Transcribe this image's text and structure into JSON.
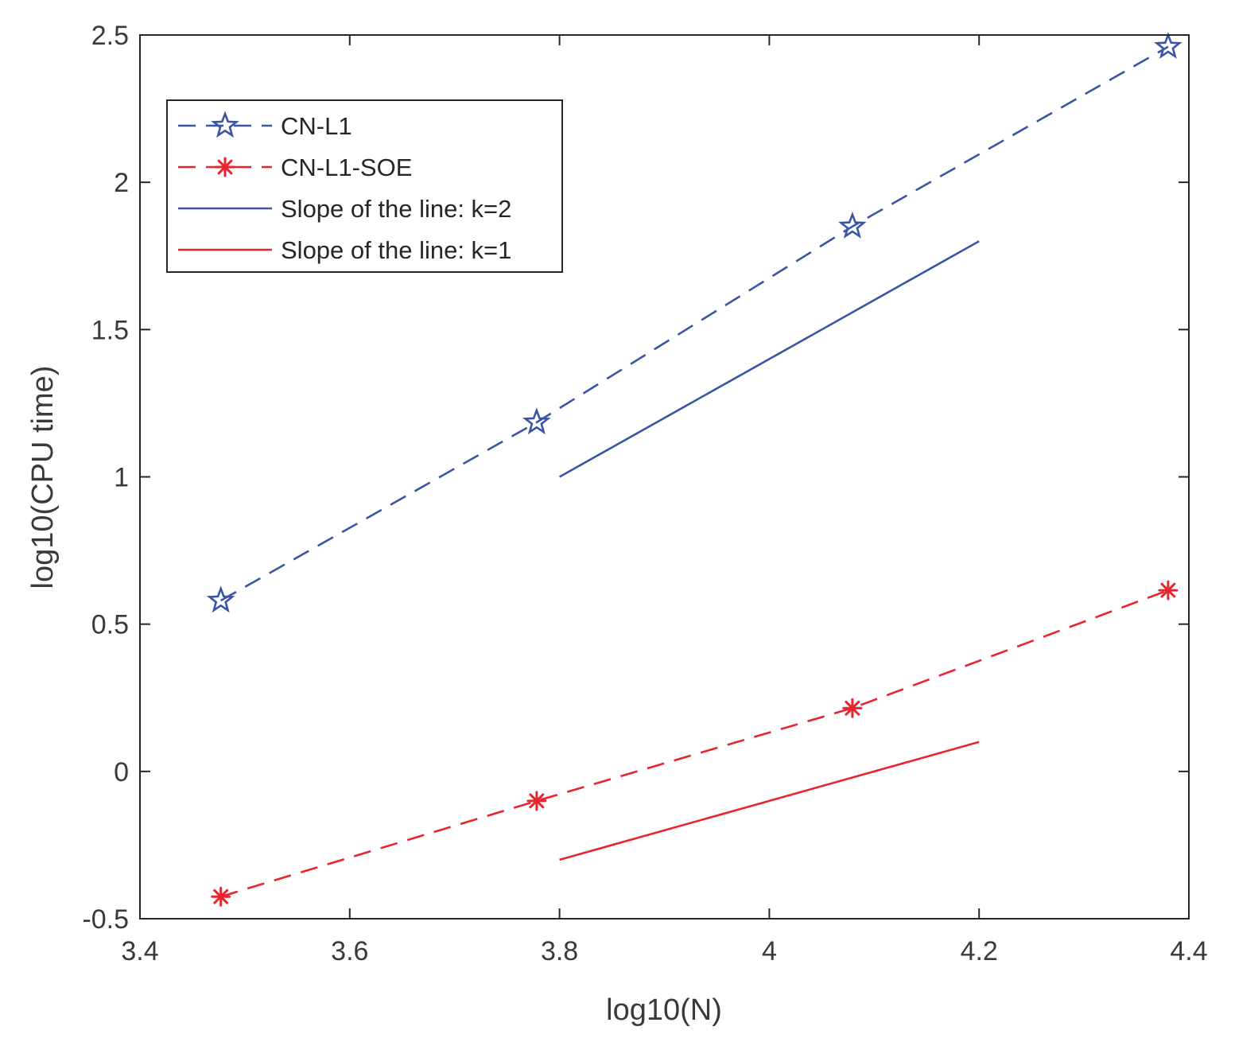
{
  "chart_data": {
    "type": "line",
    "title": "",
    "xlabel": "log10(N)",
    "ylabel": "log10(CPU time)",
    "xlim": [
      3.4,
      4.4
    ],
    "ylim": [
      -0.5,
      2.5
    ],
    "xticks": [
      3.4,
      3.6,
      3.8,
      4.0,
      4.2,
      4.4
    ],
    "xtick_labels": [
      "3.4",
      "3.6",
      "3.8",
      "4",
      "4.2",
      "4.4"
    ],
    "yticks": [
      -0.5,
      0,
      0.5,
      1,
      1.5,
      2,
      2.5
    ],
    "ytick_labels": [
      "-0.5",
      "0",
      "0.5",
      "1",
      "1.5",
      "2",
      "2.5"
    ],
    "grid": false,
    "legend_position": "top-left",
    "series": [
      {
        "name": "CN-L1",
        "color": "#3a55a4",
        "line_style": "dashed",
        "marker": "star",
        "x": [
          3.4771,
          3.7782,
          4.0792,
          4.3802
        ],
        "y": [
          0.58,
          1.185,
          1.85,
          2.46
        ]
      },
      {
        "name": "CN-L1-SOE",
        "color": "#e8242e",
        "line_style": "dashed",
        "marker": "asterisk",
        "x": [
          3.4771,
          3.7782,
          4.0792,
          4.3802
        ],
        "y": [
          -0.425,
          -0.1,
          0.215,
          0.615
        ]
      },
      {
        "name": "Slope of the line: k=2",
        "color": "#3a55a4",
        "line_style": "solid",
        "marker": "none",
        "x": [
          3.8,
          4.2
        ],
        "y": [
          1.0,
          1.8
        ]
      },
      {
        "name": "Slope of the line: k=1",
        "color": "#e8242e",
        "line_style": "solid",
        "marker": "none",
        "x": [
          3.8,
          4.2
        ],
        "y": [
          -0.3,
          0.1
        ]
      }
    ]
  }
}
